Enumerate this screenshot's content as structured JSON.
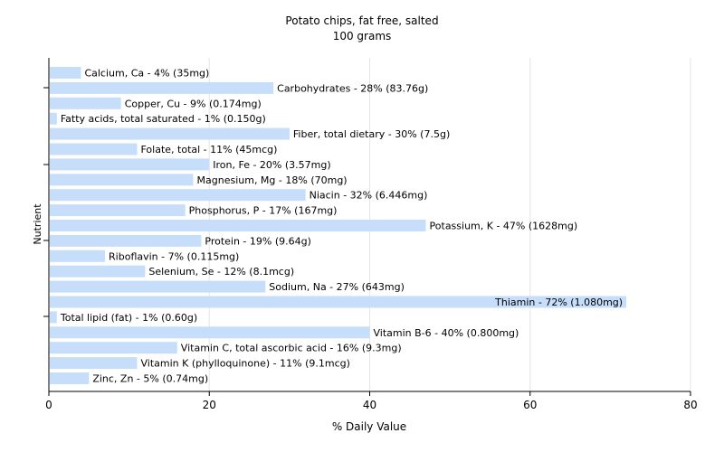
{
  "chart_data": {
    "type": "bar",
    "orientation": "horizontal",
    "title": "Potato chips, fat free, salted",
    "subtitle": "100 grams",
    "xlabel": "% Daily Value",
    "ylabel": "Nutrient",
    "xlim": [
      0,
      80
    ],
    "x_ticks": [
      "0",
      "20",
      "40",
      "60",
      "80"
    ],
    "grid": true,
    "bar_color": "#c6defa",
    "grid_color": "#e6e6e6",
    "categories": [
      "Calcium, Ca",
      "Carbohydrates",
      "Copper, Cu",
      "Fatty acids, total saturated",
      "Fiber, total dietary",
      "Folate, total",
      "Iron, Fe",
      "Magnesium, Mg",
      "Niacin",
      "Phosphorus, P",
      "Potassium, K",
      "Protein",
      "Riboflavin",
      "Selenium, Se",
      "Sodium, Na",
      "Thiamin",
      "Total lipid (fat)",
      "Vitamin B-6",
      "Vitamin C, total ascorbic acid",
      "Vitamin K (phylloquinone)",
      "Zinc, Zn"
    ],
    "values": [
      4,
      28,
      9,
      1,
      30,
      11,
      20,
      18,
      32,
      17,
      47,
      19,
      7,
      12,
      27,
      72,
      1,
      40,
      16,
      11,
      5
    ],
    "labels": [
      "Calcium, Ca - 4% (35mg)",
      "Carbohydrates - 28% (83.76g)",
      "Copper, Cu - 9% (0.174mg)",
      "Fatty acids, total saturated - 1% (0.150g)",
      "Fiber, total dietary - 30% (7.5g)",
      "Folate, total - 11% (45mcg)",
      "Iron, Fe - 20% (3.57mg)",
      "Magnesium, Mg - 18% (70mg)",
      "Niacin - 32% (6.446mg)",
      "Phosphorus, P - 17% (167mg)",
      "Potassium, K - 47% (1628mg)",
      "Protein - 19% (9.64g)",
      "Riboflavin - 7% (0.115mg)",
      "Selenium, Se - 12% (8.1mcg)",
      "Sodium, Na - 27% (643mg)",
      "Thiamin - 72% (1.080mg)",
      "Total lipid (fat) - 1% (0.60g)",
      "Vitamin B-6 - 40% (0.800mg)",
      "Vitamin C, total ascorbic acid - 16% (9.3mg)",
      "Vitamin K (phylloquinone) - 11% (9.1mcg)",
      "Zinc, Zn - 5% (0.74mg)"
    ]
  }
}
